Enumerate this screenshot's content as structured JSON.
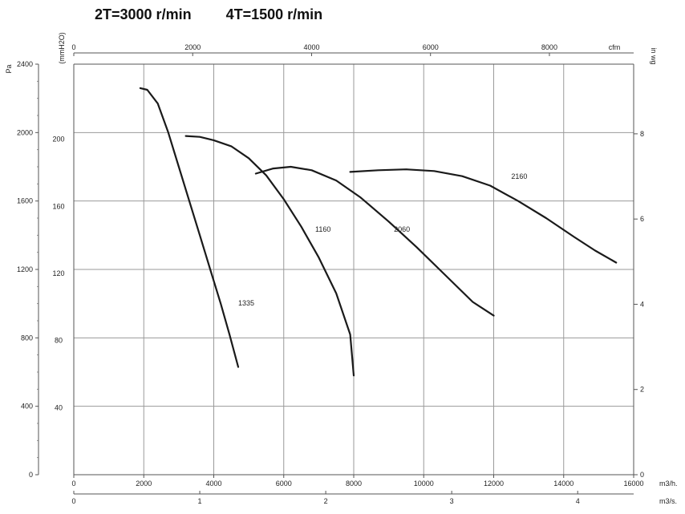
{
  "title": {
    "line_2t": "2T=3000 r/min",
    "line_4t": "4T=1500 r/min"
  },
  "chart_data": {
    "type": "line",
    "x_primary": {
      "unit": "m3/h.",
      "ticks": [
        0,
        2000,
        4000,
        6000,
        8000,
        10000,
        12000,
        14000,
        16000
      ],
      "range": [
        0,
        16000
      ]
    },
    "x_secondary": {
      "unit": "m3/s.",
      "ticks": [
        0,
        1,
        2,
        3,
        4
      ]
    },
    "x_top": {
      "unit": "cfm",
      "ticks": [
        0,
        2000,
        4000,
        6000,
        8000
      ]
    },
    "y_left_pa": {
      "unit": "Pa",
      "ticks": [
        0,
        400,
        800,
        1200,
        1600,
        2000,
        2400
      ],
      "range": [
        0,
        2400
      ]
    },
    "y_left_mmh2o": {
      "unit": "(mmH2O)",
      "ticks": [
        40,
        80,
        120,
        160,
        200
      ]
    },
    "y_right": {
      "unit": "in wg",
      "ticks": [
        0,
        2,
        4,
        6,
        8
      ]
    },
    "grid": true,
    "series": [
      {
        "name": "1335",
        "label_at": [
          4700,
          990
        ],
        "points": [
          [
            1900,
            2260
          ],
          [
            2100,
            2250
          ],
          [
            2400,
            2170
          ],
          [
            2700,
            2000
          ],
          [
            3000,
            1800
          ],
          [
            3300,
            1600
          ],
          [
            3600,
            1400
          ],
          [
            3900,
            1200
          ],
          [
            4200,
            1000
          ],
          [
            4450,
            820
          ],
          [
            4700,
            630
          ]
        ]
      },
      {
        "name": "1160",
        "label_at": [
          6900,
          1420
        ],
        "points": [
          [
            3200,
            1980
          ],
          [
            3600,
            1975
          ],
          [
            4000,
            1955
          ],
          [
            4500,
            1920
          ],
          [
            5000,
            1850
          ],
          [
            5500,
            1750
          ],
          [
            6000,
            1610
          ],
          [
            6500,
            1450
          ],
          [
            7000,
            1270
          ],
          [
            7500,
            1060
          ],
          [
            7900,
            820
          ],
          [
            8000,
            580
          ]
        ]
      },
      {
        "name": "2060",
        "label_at": [
          9150,
          1420
        ],
        "points": [
          [
            5200,
            1760
          ],
          [
            5700,
            1790
          ],
          [
            6200,
            1800
          ],
          [
            6800,
            1780
          ],
          [
            7500,
            1720
          ],
          [
            8200,
            1620
          ],
          [
            9000,
            1480
          ],
          [
            9800,
            1330
          ],
          [
            10600,
            1170
          ],
          [
            11400,
            1010
          ],
          [
            12000,
            930
          ]
        ]
      },
      {
        "name": "2160",
        "label_at": [
          12500,
          1730
        ],
        "points": [
          [
            7900,
            1770
          ],
          [
            8700,
            1780
          ],
          [
            9500,
            1785
          ],
          [
            10300,
            1775
          ],
          [
            11100,
            1745
          ],
          [
            11900,
            1690
          ],
          [
            12700,
            1600
          ],
          [
            13500,
            1500
          ],
          [
            14300,
            1390
          ],
          [
            14900,
            1310
          ],
          [
            15500,
            1240
          ]
        ]
      }
    ]
  }
}
